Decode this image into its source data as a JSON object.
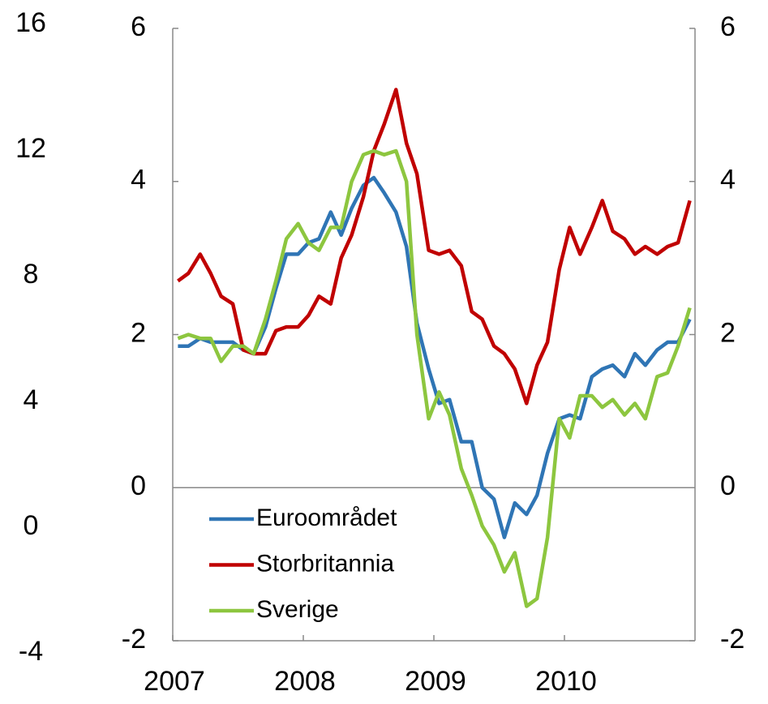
{
  "chart_data": {
    "type": "line",
    "x": [
      2007.04,
      2007.12,
      2007.21,
      2007.29,
      2007.37,
      2007.46,
      2007.54,
      2007.62,
      2007.71,
      2007.79,
      2007.87,
      2007.96,
      2008.04,
      2008.12,
      2008.21,
      2008.29,
      2008.37,
      2008.46,
      2008.54,
      2008.62,
      2008.71,
      2008.79,
      2008.87,
      2008.96,
      2009.04,
      2009.12,
      2009.21,
      2009.29,
      2009.37,
      2009.46,
      2009.54,
      2009.62,
      2009.71,
      2009.79,
      2009.87,
      2009.96,
      2010.04,
      2010.12,
      2010.21,
      2010.29,
      2010.37,
      2010.46,
      2010.54,
      2010.62,
      2010.71,
      2010.79,
      2010.87,
      2010.96
    ],
    "xlim": [
      2007,
      2011
    ],
    "xticks": [
      2007,
      2008,
      2009,
      2010
    ],
    "ylim": [
      -2,
      6
    ],
    "yticks": [
      -2,
      0,
      2,
      4,
      6
    ],
    "y2lim": [
      -2,
      6
    ],
    "y2ticks": [
      -2,
      0,
      2,
      4,
      6
    ],
    "y3lim": [
      -4,
      16
    ],
    "y3ticks": [
      -4,
      0,
      4,
      8,
      12,
      16
    ],
    "legend": "lower left",
    "series": [
      {
        "name": "Euroområdet",
        "color": "#2f75b5",
        "values": [
          1.85,
          1.85,
          1.95,
          1.9,
          1.9,
          1.9,
          1.8,
          1.75,
          2.1,
          2.6,
          3.05,
          3.05,
          3.2,
          3.25,
          3.6,
          3.3,
          3.65,
          3.95,
          4.05,
          3.85,
          3.6,
          3.15,
          2.15,
          1.55,
          1.1,
          1.15,
          0.6,
          0.6,
          0.0,
          -0.15,
          -0.65,
          -0.2,
          -0.35,
          -0.1,
          0.45,
          0.9,
          0.95,
          0.9,
          1.45,
          1.55,
          1.6,
          1.45,
          1.75,
          1.6,
          1.8,
          1.9,
          1.9,
          2.2
        ]
      },
      {
        "name": "Storbritannia",
        "color": "#c00000",
        "values": [
          2.7,
          2.8,
          3.05,
          2.8,
          2.5,
          2.4,
          1.8,
          1.75,
          1.75,
          2.05,
          2.1,
          2.1,
          2.25,
          2.5,
          2.4,
          3.0,
          3.3,
          3.8,
          4.4,
          4.75,
          5.2,
          4.5,
          4.1,
          3.1,
          3.05,
          3.1,
          2.9,
          2.3,
          2.2,
          1.85,
          1.75,
          1.55,
          1.1,
          1.6,
          1.9,
          2.85,
          3.4,
          3.05,
          3.4,
          3.75,
          3.35,
          3.25,
          3.05,
          3.15,
          3.05,
          3.15,
          3.2,
          3.75
        ]
      },
      {
        "name": "Sverige",
        "color": "#8dc63f",
        "values": [
          1.95,
          2.0,
          1.95,
          1.95,
          1.65,
          1.85,
          1.85,
          1.75,
          2.2,
          2.7,
          3.25,
          3.45,
          3.2,
          3.1,
          3.4,
          3.4,
          4.0,
          4.35,
          4.4,
          4.35,
          4.4,
          4.0,
          2.0,
          0.9,
          1.25,
          0.95,
          0.25,
          -0.1,
          -0.5,
          -0.75,
          -1.1,
          -0.85,
          -1.55,
          -1.45,
          -0.65,
          0.9,
          0.65,
          1.2,
          1.2,
          1.05,
          1.15,
          0.95,
          1.1,
          0.9,
          1.45,
          1.5,
          1.85,
          2.35
        ]
      }
    ]
  }
}
